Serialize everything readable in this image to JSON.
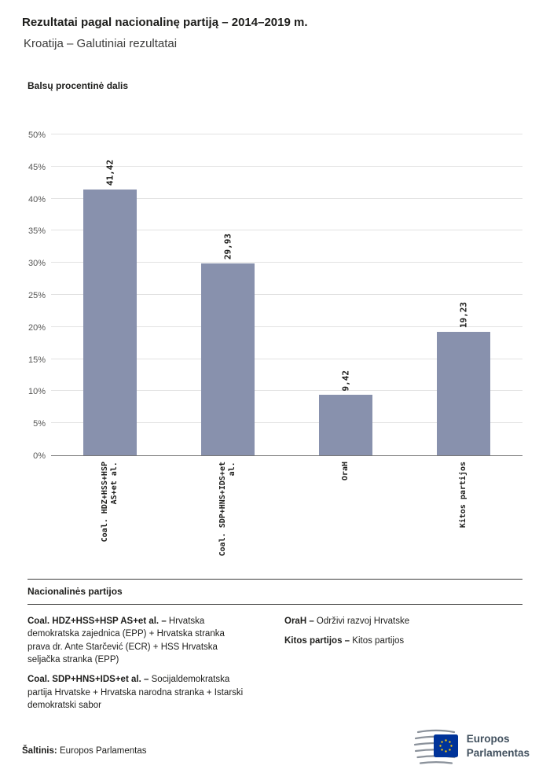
{
  "header": {
    "title": "Rezultatai pagal nacionalinę partiją – 2014–2019 m.",
    "subtitle": "Kroatija – Galutiniai rezultatai"
  },
  "chart_data": {
    "type": "bar",
    "title": "Balsų procentinė dalis",
    "categories": [
      "Coal. HDZ+HSS+HSP\nAS+et al.",
      "Coal. SDP+HNS+IDS+et\nal.",
      "OraH",
      "Kitos partijos"
    ],
    "values": [
      41.42,
      29.93,
      9.42,
      19.23
    ],
    "value_labels": [
      "41,42",
      "29,93",
      "9,42",
      "19,23"
    ],
    "ylim": [
      0,
      50
    ],
    "ytick_step": 5,
    "ytick_labels": [
      "0%",
      "5%",
      "10%",
      "15%",
      "20%",
      "25%",
      "30%",
      "35%",
      "40%",
      "45%",
      "50%"
    ],
    "grid": true,
    "legend_position": "bottom",
    "bar_color": "#8891ad"
  },
  "legend": {
    "heading": "Nacionalinės partijos",
    "entries_left": [
      {
        "term": "Coal. HDZ+HSS+HSP AS+et al. –",
        "definition": "Hrvatska demokratska zajednica (EPP) + Hrvatska stranka prava dr. Ante Starčević (ECR) + HSS Hrvatska seljačka stranka (EPP)"
      },
      {
        "term": "Coal. SDP+HNS+IDS+et al. –",
        "definition": "Socijaldemokratska partija Hrvatske + Hrvatska narodna stranka + Istarski demokratski sabor"
      }
    ],
    "entries_right": [
      {
        "term": "OraH –",
        "definition": "Održivi razvoj Hrvatske"
      },
      {
        "term": "Kitos partijos –",
        "definition": "Kitos partijos"
      }
    ]
  },
  "footer": {
    "source_label": "Šaltinis:",
    "source_value": "Europos Parlamentas",
    "logo_text_line1": "Europos",
    "logo_text_line2": "Parlamentas"
  }
}
